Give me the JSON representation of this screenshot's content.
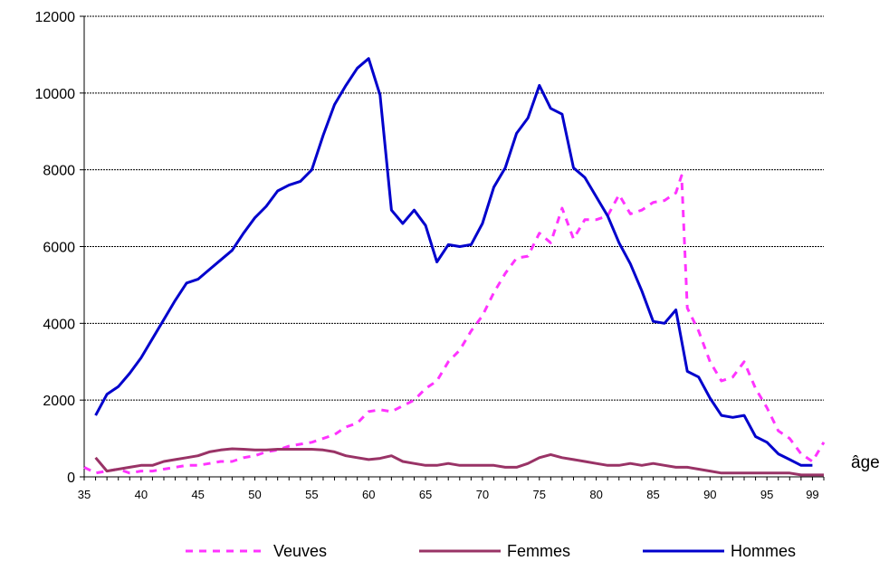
{
  "chart_data": {
    "type": "line",
    "title": "",
    "xlabel": "âge",
    "ylabel": "",
    "xlim": [
      35,
      100
    ],
    "ylim": [
      0,
      12000
    ],
    "grid": "horizontal dashed",
    "legend_position": "bottom",
    "x_ticks": [
      35,
      40,
      45,
      50,
      55,
      60,
      65,
      70,
      75,
      80,
      85,
      90,
      95,
      99
    ],
    "y_ticks": [
      0,
      2000,
      4000,
      6000,
      8000,
      10000,
      12000
    ],
    "series": [
      {
        "name": "Veuves",
        "color": "#FF33FF",
        "style": "dashed",
        "x": [
          35,
          36,
          37,
          38,
          39,
          40,
          41,
          42,
          43,
          44,
          45,
          46,
          47,
          48,
          49,
          50,
          51,
          52,
          53,
          54,
          55,
          56,
          57,
          58,
          59,
          60,
          61,
          62,
          63,
          64,
          65,
          66,
          67,
          68,
          69,
          70,
          71,
          72,
          73,
          74,
          75,
          76,
          77,
          78,
          79,
          80,
          81,
          82,
          83,
          84,
          85,
          86,
          87,
          87.5,
          88,
          89,
          90,
          91,
          92,
          93,
          94,
          95,
          96,
          97,
          98,
          99,
          100
        ],
        "values": [
          250,
          100,
          150,
          200,
          100,
          150,
          150,
          200,
          250,
          300,
          300,
          350,
          400,
          400,
          500,
          550,
          650,
          700,
          800,
          850,
          900,
          1000,
          1100,
          1300,
          1400,
          1700,
          1750,
          1700,
          1850,
          2000,
          2300,
          2500,
          3000,
          3300,
          3800,
          4200,
          4800,
          5300,
          5700,
          5750,
          6350,
          6100,
          7000,
          6200,
          6700,
          6700,
          6800,
          7350,
          6850,
          6950,
          7150,
          7200,
          7400,
          7850,
          4400,
          3800,
          3000,
          2500,
          2600,
          3000,
          2300,
          1800,
          1200,
          1000,
          600,
          400,
          900
        ]
      },
      {
        "name": "Femmes",
        "color": "#993366",
        "style": "solid",
        "x": [
          36,
          37,
          38,
          39,
          40,
          41,
          42,
          43,
          44,
          45,
          46,
          47,
          48,
          49,
          50,
          51,
          52,
          53,
          54,
          55,
          56,
          57,
          58,
          59,
          60,
          61,
          62,
          63,
          64,
          65,
          66,
          67,
          68,
          69,
          70,
          71,
          72,
          73,
          74,
          75,
          76,
          77,
          78,
          79,
          80,
          81,
          82,
          83,
          84,
          85,
          86,
          87,
          88,
          89,
          90,
          91,
          92,
          93,
          94,
          95,
          96,
          97,
          98,
          99,
          100
        ],
        "values": [
          500,
          150,
          200,
          250,
          300,
          300,
          400,
          450,
          500,
          550,
          650,
          700,
          730,
          720,
          700,
          700,
          720,
          720,
          720,
          720,
          700,
          650,
          550,
          500,
          450,
          480,
          550,
          400,
          350,
          300,
          300,
          350,
          300,
          300,
          300,
          300,
          250,
          250,
          350,
          500,
          580,
          500,
          450,
          400,
          350,
          300,
          300,
          350,
          300,
          350,
          300,
          250,
          250,
          200,
          150,
          100,
          100,
          100,
          100,
          100,
          100,
          100,
          50,
          50,
          50
        ]
      },
      {
        "name": "Hommes",
        "color": "#0000CC",
        "style": "solid",
        "x": [
          36,
          37,
          38,
          39,
          40,
          41,
          42,
          43,
          44,
          45,
          46,
          47,
          48,
          49,
          50,
          51,
          52,
          53,
          54,
          55,
          56,
          57,
          58,
          59,
          60,
          61,
          62,
          63,
          64,
          65,
          66,
          67,
          68,
          69,
          70,
          71,
          72,
          73,
          74,
          75,
          76,
          77,
          78,
          79,
          80,
          81,
          82,
          83,
          84,
          85,
          86,
          87,
          88,
          89,
          90,
          91,
          92,
          93,
          94,
          95,
          96,
          97,
          98,
          99
        ],
        "values": [
          1600,
          2150,
          2350,
          2700,
          3100,
          3600,
          4100,
          4600,
          5050,
          5150,
          5400,
          5650,
          5900,
          6350,
          6750,
          7050,
          7450,
          7600,
          7700,
          8000,
          8900,
          9700,
          10200,
          10650,
          10900,
          9950,
          6950,
          6600,
          6950,
          6550,
          5600,
          6050,
          6000,
          6050,
          6600,
          7550,
          8050,
          8950,
          9350,
          10200,
          9600,
          9450,
          8050,
          7800,
          7300,
          6800,
          6100,
          5550,
          4850,
          4050,
          4000,
          4350,
          2750,
          2600,
          2050,
          1600,
          1550,
          1600,
          1050,
          900,
          600,
          450,
          300,
          300
        ]
      }
    ]
  }
}
